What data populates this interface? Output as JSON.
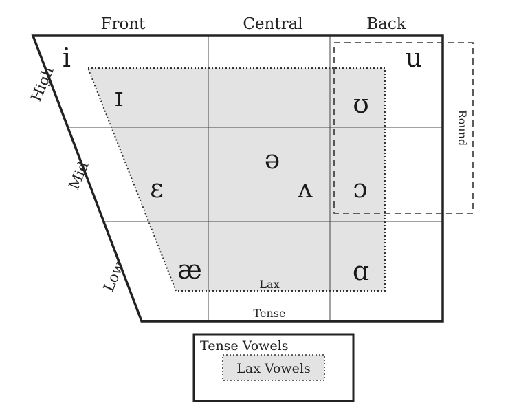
{
  "headers": {
    "front": "Front",
    "central": "Central",
    "back": "Back"
  },
  "heights": {
    "high": "High",
    "mid": "Mid",
    "low": "Low"
  },
  "round_label": "Round",
  "region_labels": {
    "lax": "Lax",
    "tense": "Tense"
  },
  "vowels": {
    "i": "i",
    "u": "u",
    "small_cap_i": "ɪ",
    "upsilon": "ʊ",
    "schwa": "ə",
    "epsilon": "ɛ",
    "wedge": "ʌ",
    "open_o": "ɔ",
    "ash": "æ",
    "script_a": "ɑ"
  },
  "legend": {
    "tense": "Tense Vowels",
    "lax": "Lax Vowels"
  },
  "colors": {
    "lax_fill": "#e3e3e3",
    "line": "#222222"
  }
}
